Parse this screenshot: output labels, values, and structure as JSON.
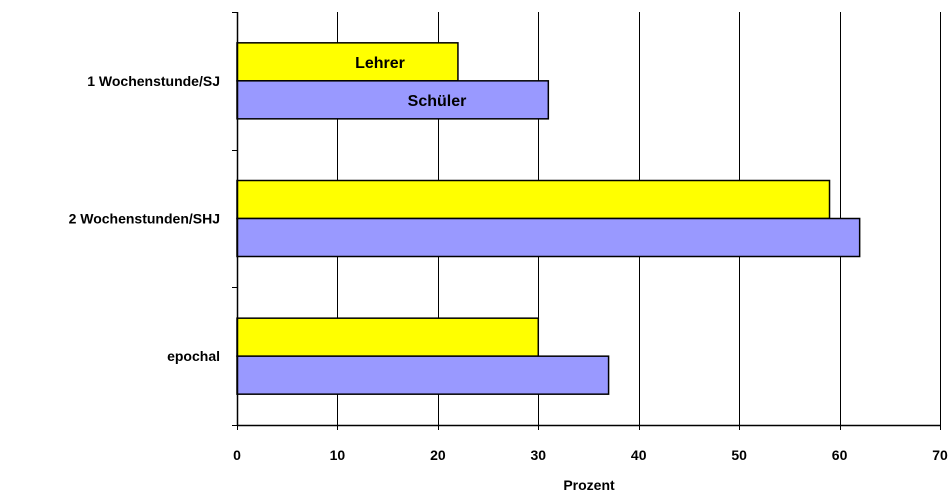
{
  "chart_data": {
    "type": "bar",
    "orientation": "horizontal",
    "title": "",
    "xlabel": "Prozent",
    "ylabel": "",
    "categories": [
      "1 Wochenstunde/SJ",
      "2 Wochenstunden/SHJ",
      "epochal"
    ],
    "series": [
      {
        "name": "Lehrer",
        "color": "#FFFF00",
        "values": [
          22,
          59,
          30
        ]
      },
      {
        "name": "Schüler",
        "color": "#9999FF",
        "values": [
          31,
          62,
          37
        ]
      }
    ],
    "xlim": [
      0,
      70
    ],
    "xticks": [
      0,
      10,
      20,
      30,
      40,
      50,
      60,
      70
    ],
    "grid": "vertical",
    "legend": "inline-labels"
  }
}
